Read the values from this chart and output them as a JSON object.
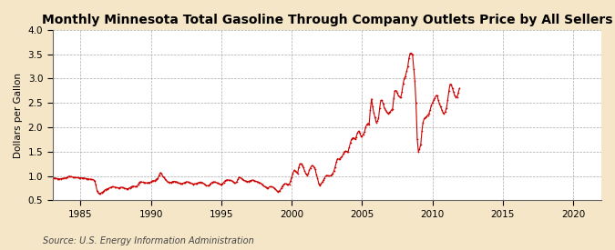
{
  "title": "Monthly Minnesota Total Gasoline Through Company Outlets Price by All Sellers",
  "ylabel": "Dollars per Gallon",
  "source": "Source: U.S. Energy Information Administration",
  "xlim": [
    1983.0,
    2022.0
  ],
  "ylim": [
    0.5,
    4.0
  ],
  "xticks": [
    1985,
    1990,
    1995,
    2000,
    2005,
    2010,
    2015,
    2020
  ],
  "yticks": [
    0.5,
    1.0,
    1.5,
    2.0,
    2.5,
    3.0,
    3.5,
    4.0
  ],
  "background_color": "#f5e6c8",
  "plot_bg_color": "#ffffff",
  "line_color": "#cc0000",
  "marker": ".",
  "markersize": 2.5,
  "grid_color": "#aaaaaa",
  "grid_style": "--",
  "title_fontsize": 10,
  "label_fontsize": 7.5,
  "tick_fontsize": 7.5,
  "source_fontsize": 7,
  "data": [
    [
      1983.08,
      0.963
    ],
    [
      1983.17,
      0.957
    ],
    [
      1983.25,
      0.95
    ],
    [
      1983.33,
      0.945
    ],
    [
      1983.42,
      0.942
    ],
    [
      1983.5,
      0.94
    ],
    [
      1983.58,
      0.942
    ],
    [
      1983.67,
      0.946
    ],
    [
      1983.75,
      0.95
    ],
    [
      1983.83,
      0.955
    ],
    [
      1983.92,
      0.96
    ],
    [
      1984.0,
      0.968
    ],
    [
      1984.08,
      0.975
    ],
    [
      1984.17,
      0.998
    ],
    [
      1984.25,
      0.99
    ],
    [
      1984.33,
      0.985
    ],
    [
      1984.42,
      0.978
    ],
    [
      1984.5,
      0.972
    ],
    [
      1984.58,
      0.97
    ],
    [
      1984.67,
      0.968
    ],
    [
      1984.75,
      0.965
    ],
    [
      1984.83,
      0.965
    ],
    [
      1984.92,
      0.963
    ],
    [
      1985.0,
      0.962
    ],
    [
      1985.08,
      0.96
    ],
    [
      1985.17,
      0.96
    ],
    [
      1985.25,
      0.958
    ],
    [
      1985.33,
      0.952
    ],
    [
      1985.42,
      0.945
    ],
    [
      1985.5,
      0.938
    ],
    [
      1985.58,
      0.94
    ],
    [
      1985.67,
      0.935
    ],
    [
      1985.75,
      0.93
    ],
    [
      1985.83,
      0.928
    ],
    [
      1985.92,
      0.92
    ],
    [
      1986.0,
      0.89
    ],
    [
      1986.08,
      0.82
    ],
    [
      1986.17,
      0.69
    ],
    [
      1986.25,
      0.65
    ],
    [
      1986.33,
      0.638
    ],
    [
      1986.42,
      0.645
    ],
    [
      1986.5,
      0.66
    ],
    [
      1986.58,
      0.672
    ],
    [
      1986.67,
      0.698
    ],
    [
      1986.75,
      0.718
    ],
    [
      1986.83,
      0.73
    ],
    [
      1986.92,
      0.735
    ],
    [
      1987.0,
      0.748
    ],
    [
      1987.08,
      0.76
    ],
    [
      1987.17,
      0.768
    ],
    [
      1987.25,
      0.778
    ],
    [
      1987.33,
      0.778
    ],
    [
      1987.42,
      0.772
    ],
    [
      1987.5,
      0.762
    ],
    [
      1987.58,
      0.76
    ],
    [
      1987.67,
      0.758
    ],
    [
      1987.75,
      0.758
    ],
    [
      1987.83,
      0.765
    ],
    [
      1987.92,
      0.768
    ],
    [
      1988.0,
      0.762
    ],
    [
      1988.08,
      0.752
    ],
    [
      1988.17,
      0.742
    ],
    [
      1988.25,
      0.738
    ],
    [
      1988.33,
      0.738
    ],
    [
      1988.42,
      0.742
    ],
    [
      1988.5,
      0.758
    ],
    [
      1988.58,
      0.775
    ],
    [
      1988.67,
      0.788
    ],
    [
      1988.75,
      0.792
    ],
    [
      1988.83,
      0.785
    ],
    [
      1988.92,
      0.78
    ],
    [
      1989.0,
      0.788
    ],
    [
      1989.08,
      0.82
    ],
    [
      1989.17,
      0.868
    ],
    [
      1989.25,
      0.882
    ],
    [
      1989.33,
      0.875
    ],
    [
      1989.42,
      0.872
    ],
    [
      1989.5,
      0.868
    ],
    [
      1989.58,
      0.862
    ],
    [
      1989.67,
      0.858
    ],
    [
      1989.75,
      0.858
    ],
    [
      1989.83,
      0.865
    ],
    [
      1989.92,
      0.868
    ],
    [
      1990.0,
      0.878
    ],
    [
      1990.08,
      0.898
    ],
    [
      1990.17,
      0.902
    ],
    [
      1990.25,
      0.902
    ],
    [
      1990.33,
      0.918
    ],
    [
      1990.42,
      0.942
    ],
    [
      1990.5,
      0.958
    ],
    [
      1990.58,
      1.018
    ],
    [
      1990.67,
      1.068
    ],
    [
      1990.75,
      1.048
    ],
    [
      1990.83,
      0.992
    ],
    [
      1990.92,
      0.968
    ],
    [
      1991.0,
      0.942
    ],
    [
      1991.08,
      0.912
    ],
    [
      1991.17,
      0.88
    ],
    [
      1991.25,
      0.872
    ],
    [
      1991.33,
      0.868
    ],
    [
      1991.42,
      0.868
    ],
    [
      1991.5,
      0.878
    ],
    [
      1991.58,
      0.888
    ],
    [
      1991.67,
      0.888
    ],
    [
      1991.75,
      0.882
    ],
    [
      1991.83,
      0.878
    ],
    [
      1991.92,
      0.862
    ],
    [
      1992.0,
      0.852
    ],
    [
      1992.08,
      0.842
    ],
    [
      1992.17,
      0.842
    ],
    [
      1992.25,
      0.848
    ],
    [
      1992.33,
      0.858
    ],
    [
      1992.42,
      0.868
    ],
    [
      1992.5,
      0.878
    ],
    [
      1992.58,
      0.882
    ],
    [
      1992.67,
      0.872
    ],
    [
      1992.75,
      0.862
    ],
    [
      1992.83,
      0.852
    ],
    [
      1992.92,
      0.842
    ],
    [
      1993.0,
      0.832
    ],
    [
      1993.08,
      0.838
    ],
    [
      1993.17,
      0.842
    ],
    [
      1993.25,
      0.848
    ],
    [
      1993.33,
      0.858
    ],
    [
      1993.42,
      0.868
    ],
    [
      1993.5,
      0.872
    ],
    [
      1993.58,
      0.868
    ],
    [
      1993.67,
      0.858
    ],
    [
      1993.75,
      0.842
    ],
    [
      1993.83,
      0.822
    ],
    [
      1993.92,
      0.802
    ],
    [
      1994.0,
      0.798
    ],
    [
      1994.08,
      0.802
    ],
    [
      1994.17,
      0.818
    ],
    [
      1994.25,
      0.848
    ],
    [
      1994.33,
      0.868
    ],
    [
      1994.42,
      0.878
    ],
    [
      1994.5,
      0.878
    ],
    [
      1994.58,
      0.872
    ],
    [
      1994.67,
      0.862
    ],
    [
      1994.75,
      0.852
    ],
    [
      1994.83,
      0.842
    ],
    [
      1994.92,
      0.832
    ],
    [
      1995.0,
      0.828
    ],
    [
      1995.08,
      0.838
    ],
    [
      1995.17,
      0.868
    ],
    [
      1995.25,
      0.898
    ],
    [
      1995.33,
      0.912
    ],
    [
      1995.42,
      0.92
    ],
    [
      1995.5,
      0.918
    ],
    [
      1995.58,
      0.912
    ],
    [
      1995.67,
      0.908
    ],
    [
      1995.75,
      0.898
    ],
    [
      1995.83,
      0.882
    ],
    [
      1995.92,
      0.862
    ],
    [
      1996.0,
      0.852
    ],
    [
      1996.08,
      0.872
    ],
    [
      1996.17,
      0.928
    ],
    [
      1996.25,
      0.972
    ],
    [
      1996.33,
      0.968
    ],
    [
      1996.42,
      0.952
    ],
    [
      1996.5,
      0.928
    ],
    [
      1996.58,
      0.918
    ],
    [
      1996.67,
      0.902
    ],
    [
      1996.75,
      0.892
    ],
    [
      1996.83,
      0.888
    ],
    [
      1996.92,
      0.888
    ],
    [
      1997.0,
      0.898
    ],
    [
      1997.08,
      0.902
    ],
    [
      1997.17,
      0.912
    ],
    [
      1997.25,
      0.918
    ],
    [
      1997.33,
      0.902
    ],
    [
      1997.42,
      0.892
    ],
    [
      1997.5,
      0.888
    ],
    [
      1997.58,
      0.878
    ],
    [
      1997.67,
      0.868
    ],
    [
      1997.75,
      0.858
    ],
    [
      1997.83,
      0.842
    ],
    [
      1997.92,
      0.818
    ],
    [
      1998.0,
      0.798
    ],
    [
      1998.08,
      0.778
    ],
    [
      1998.17,
      0.768
    ],
    [
      1998.25,
      0.758
    ],
    [
      1998.33,
      0.758
    ],
    [
      1998.42,
      0.778
    ],
    [
      1998.5,
      0.778
    ],
    [
      1998.58,
      0.778
    ],
    [
      1998.67,
      0.768
    ],
    [
      1998.75,
      0.752
    ],
    [
      1998.83,
      0.732
    ],
    [
      1998.92,
      0.702
    ],
    [
      1999.0,
      0.678
    ],
    [
      1999.08,
      0.688
    ],
    [
      1999.17,
      0.702
    ],
    [
      1999.25,
      0.742
    ],
    [
      1999.33,
      0.788
    ],
    [
      1999.42,
      0.818
    ],
    [
      1999.5,
      0.838
    ],
    [
      1999.58,
      0.842
    ],
    [
      1999.67,
      0.832
    ],
    [
      1999.75,
      0.828
    ],
    [
      1999.83,
      0.832
    ],
    [
      1999.92,
      0.898
    ],
    [
      2000.0,
      0.978
    ],
    [
      2000.08,
      1.048
    ],
    [
      2000.17,
      1.118
    ],
    [
      2000.25,
      1.102
    ],
    [
      2000.33,
      1.082
    ],
    [
      2000.42,
      1.048
    ],
    [
      2000.5,
      1.178
    ],
    [
      2000.58,
      1.248
    ],
    [
      2000.67,
      1.252
    ],
    [
      2000.75,
      1.212
    ],
    [
      2000.83,
      1.172
    ],
    [
      2000.92,
      1.102
    ],
    [
      2001.0,
      1.042
    ],
    [
      2001.08,
      1.018
    ],
    [
      2001.17,
      1.042
    ],
    [
      2001.25,
      1.118
    ],
    [
      2001.33,
      1.168
    ],
    [
      2001.42,
      1.208
    ],
    [
      2001.5,
      1.212
    ],
    [
      2001.58,
      1.182
    ],
    [
      2001.67,
      1.132
    ],
    [
      2001.75,
      1.032
    ],
    [
      2001.83,
      0.958
    ],
    [
      2001.92,
      0.842
    ],
    [
      2002.0,
      0.798
    ],
    [
      2002.08,
      0.838
    ],
    [
      2002.17,
      0.872
    ],
    [
      2002.25,
      0.912
    ],
    [
      2002.33,
      0.958
    ],
    [
      2002.42,
      1.002
    ],
    [
      2002.5,
      1.012
    ],
    [
      2002.58,
      1.002
    ],
    [
      2002.67,
      1.002
    ],
    [
      2002.75,
      1.002
    ],
    [
      2002.83,
      1.022
    ],
    [
      2002.92,
      1.052
    ],
    [
      2003.0,
      1.102
    ],
    [
      2003.08,
      1.182
    ],
    [
      2003.17,
      1.282
    ],
    [
      2003.25,
      1.352
    ],
    [
      2003.33,
      1.348
    ],
    [
      2003.42,
      1.352
    ],
    [
      2003.5,
      1.382
    ],
    [
      2003.58,
      1.402
    ],
    [
      2003.67,
      1.452
    ],
    [
      2003.75,
      1.502
    ],
    [
      2003.83,
      1.512
    ],
    [
      2003.92,
      1.502
    ],
    [
      2004.0,
      1.502
    ],
    [
      2004.08,
      1.582
    ],
    [
      2004.17,
      1.682
    ],
    [
      2004.25,
      1.752
    ],
    [
      2004.33,
      1.782
    ],
    [
      2004.42,
      1.782
    ],
    [
      2004.5,
      1.752
    ],
    [
      2004.58,
      1.802
    ],
    [
      2004.67,
      1.882
    ],
    [
      2004.75,
      1.922
    ],
    [
      2004.83,
      1.882
    ],
    [
      2004.92,
      1.822
    ],
    [
      2005.0,
      1.822
    ],
    [
      2005.08,
      1.852
    ],
    [
      2005.17,
      1.902
    ],
    [
      2005.25,
      2.002
    ],
    [
      2005.33,
      2.052
    ],
    [
      2005.42,
      2.082
    ],
    [
      2005.5,
      2.052
    ],
    [
      2005.58,
      2.352
    ],
    [
      2005.67,
      2.582
    ],
    [
      2005.75,
      2.422
    ],
    [
      2005.83,
      2.302
    ],
    [
      2005.92,
      2.202
    ],
    [
      2006.0,
      2.102
    ],
    [
      2006.08,
      2.122
    ],
    [
      2006.17,
      2.182
    ],
    [
      2006.25,
      2.402
    ],
    [
      2006.33,
      2.552
    ],
    [
      2006.42,
      2.552
    ],
    [
      2006.5,
      2.482
    ],
    [
      2006.58,
      2.402
    ],
    [
      2006.67,
      2.352
    ],
    [
      2006.75,
      2.322
    ],
    [
      2006.83,
      2.282
    ],
    [
      2006.92,
      2.302
    ],
    [
      2007.0,
      2.322
    ],
    [
      2007.08,
      2.352
    ],
    [
      2007.17,
      2.382
    ],
    [
      2007.25,
      2.602
    ],
    [
      2007.33,
      2.752
    ],
    [
      2007.42,
      2.752
    ],
    [
      2007.5,
      2.702
    ],
    [
      2007.58,
      2.652
    ],
    [
      2007.67,
      2.622
    ],
    [
      2007.75,
      2.622
    ],
    [
      2007.83,
      2.722
    ],
    [
      2007.92,
      2.902
    ],
    [
      2008.0,
      3.002
    ],
    [
      2008.08,
      3.052
    ],
    [
      2008.17,
      3.152
    ],
    [
      2008.25,
      3.252
    ],
    [
      2008.33,
      3.422
    ],
    [
      2008.42,
      3.522
    ],
    [
      2008.5,
      3.522
    ],
    [
      2008.58,
      3.502
    ],
    [
      2008.67,
      3.202
    ],
    [
      2008.75,
      2.952
    ],
    [
      2008.83,
      2.502
    ],
    [
      2008.92,
      1.752
    ],
    [
      2009.0,
      1.502
    ],
    [
      2009.08,
      1.552
    ],
    [
      2009.17,
      1.652
    ],
    [
      2009.25,
      1.922
    ],
    [
      2009.33,
      2.102
    ],
    [
      2009.42,
      2.182
    ],
    [
      2009.5,
      2.202
    ],
    [
      2009.58,
      2.222
    ],
    [
      2009.67,
      2.252
    ],
    [
      2009.75,
      2.282
    ],
    [
      2009.83,
      2.352
    ],
    [
      2009.92,
      2.452
    ],
    [
      2010.0,
      2.502
    ],
    [
      2010.08,
      2.552
    ],
    [
      2010.17,
      2.602
    ],
    [
      2010.25,
      2.652
    ],
    [
      2010.33,
      2.652
    ],
    [
      2010.42,
      2.552
    ],
    [
      2010.5,
      2.482
    ],
    [
      2010.58,
      2.422
    ],
    [
      2010.67,
      2.352
    ],
    [
      2010.75,
      2.302
    ],
    [
      2010.83,
      2.282
    ],
    [
      2010.92,
      2.322
    ],
    [
      2011.0,
      2.402
    ],
    [
      2011.08,
      2.552
    ],
    [
      2011.17,
      2.752
    ],
    [
      2011.25,
      2.882
    ],
    [
      2011.33,
      2.882
    ],
    [
      2011.42,
      2.802
    ],
    [
      2011.5,
      2.722
    ],
    [
      2011.58,
      2.652
    ],
    [
      2011.67,
      2.622
    ],
    [
      2011.75,
      2.622
    ],
    [
      2011.83,
      2.702
    ],
    [
      2011.92,
      2.802
    ]
  ]
}
